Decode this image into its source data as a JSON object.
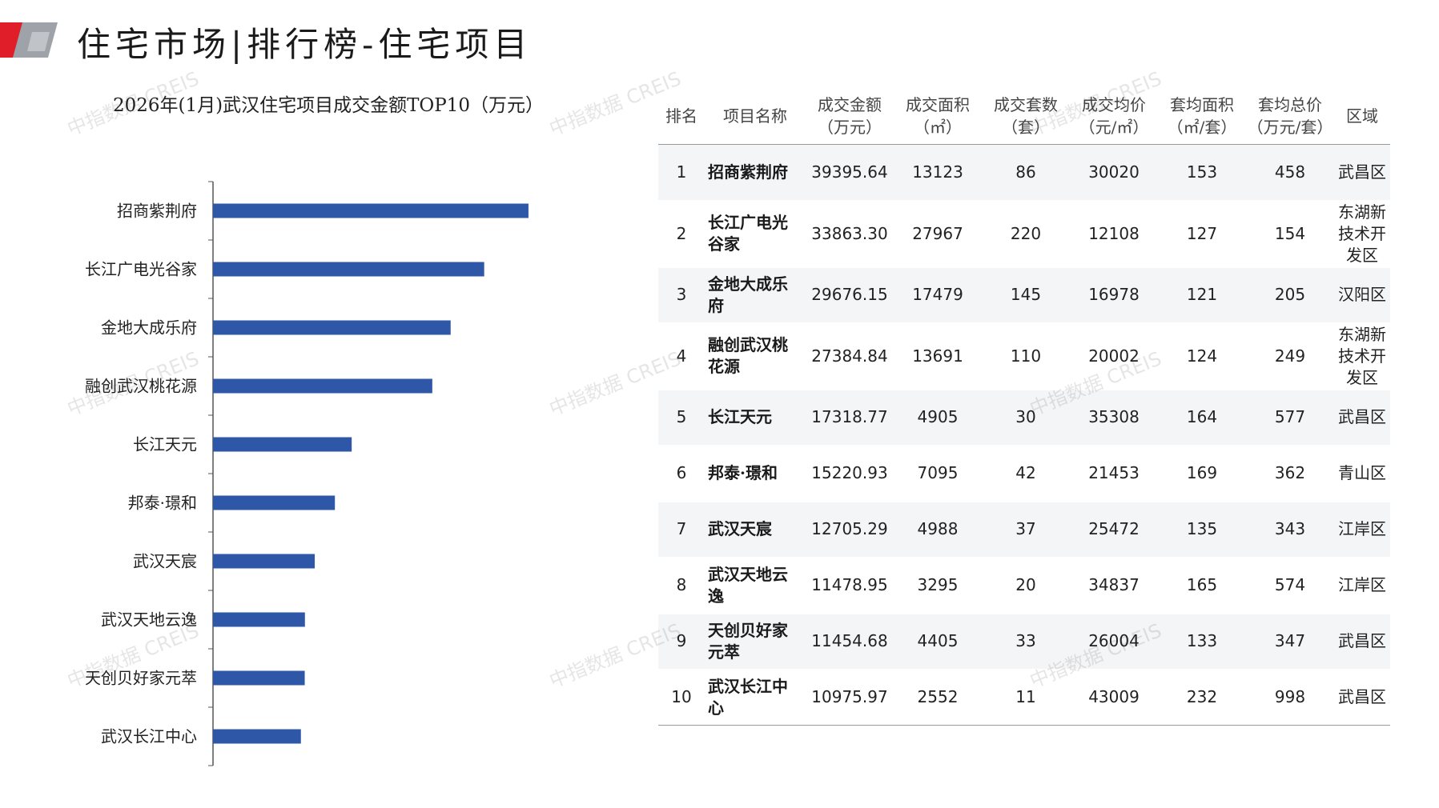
{
  "page": {
    "title": "住宅市场|排行榜-住宅项目",
    "watermark": "中指数据 CREIS"
  },
  "colors": {
    "bar": "#2f57a8",
    "accent_red": "#e01e2a",
    "accent_gray": "#9ea3a9"
  },
  "table": {
    "headers": [
      [
        "排名",
        ""
      ],
      [
        "项目名称",
        ""
      ],
      [
        "成交金额",
        "（万元）"
      ],
      [
        "成交面积",
        "（㎡）"
      ],
      [
        "成交套数",
        "（套）"
      ],
      [
        "成交均价",
        "（元/㎡）"
      ],
      [
        "套均面积",
        "（㎡/套）"
      ],
      [
        "套均总价",
        "（万元/套）"
      ],
      [
        "区域",
        ""
      ]
    ],
    "rows": [
      {
        "rank": "1",
        "name": "招商紫荆府",
        "amount": "39395.64",
        "area": "13123",
        "units": "86",
        "price": "30020",
        "avg_area": "153",
        "avg_total": "458",
        "district": "武昌区"
      },
      {
        "rank": "2",
        "name": "长江广电光谷家",
        "amount": "33863.30",
        "area": "27967",
        "units": "220",
        "price": "12108",
        "avg_area": "127",
        "avg_total": "154",
        "district": "东湖新技术开发区"
      },
      {
        "rank": "3",
        "name": "金地大成乐府",
        "amount": "29676.15",
        "area": "17479",
        "units": "145",
        "price": "16978",
        "avg_area": "121",
        "avg_total": "205",
        "district": "汉阳区"
      },
      {
        "rank": "4",
        "name": "融创武汉桃花源",
        "amount": "27384.84",
        "area": "13691",
        "units": "110",
        "price": "20002",
        "avg_area": "124",
        "avg_total": "249",
        "district": "东湖新技术开发区"
      },
      {
        "rank": "5",
        "name": "长江天元",
        "amount": "17318.77",
        "area": "4905",
        "units": "30",
        "price": "35308",
        "avg_area": "164",
        "avg_total": "577",
        "district": "武昌区"
      },
      {
        "rank": "6",
        "name": "邦泰·璟和",
        "amount": "15220.93",
        "area": "7095",
        "units": "42",
        "price": "21453",
        "avg_area": "169",
        "avg_total": "362",
        "district": "青山区"
      },
      {
        "rank": "7",
        "name": "武汉天宸",
        "amount": "12705.29",
        "area": "4988",
        "units": "37",
        "price": "25472",
        "avg_area": "135",
        "avg_total": "343",
        "district": "江岸区"
      },
      {
        "rank": "8",
        "name": "武汉天地云逸",
        "amount": "11478.95",
        "area": "3295",
        "units": "20",
        "price": "34837",
        "avg_area": "165",
        "avg_total": "574",
        "district": "江岸区"
      },
      {
        "rank": "9",
        "name": "天创贝好家元萃",
        "amount": "11454.68",
        "area": "4405",
        "units": "33",
        "price": "26004",
        "avg_area": "133",
        "avg_total": "347",
        "district": "武昌区"
      },
      {
        "rank": "10",
        "name": "武汉长江中心",
        "amount": "10975.97",
        "area": "2552",
        "units": "11",
        "price": "43009",
        "avg_area": "232",
        "avg_total": "998",
        "district": "武昌区"
      }
    ]
  },
  "chart_data": {
    "type": "bar",
    "orientation": "horizontal",
    "title": "2026年(1月)武汉住宅项目成交金额TOP10（万元）",
    "categories": [
      "招商紫荆府",
      "长江广电光谷家",
      "金地大成乐府",
      "融创武汉桃花源",
      "长江天元",
      "邦泰·璟和",
      "武汉天宸",
      "武汉天地云逸",
      "天创贝好家元萃",
      "武汉长江中心"
    ],
    "values": [
      39395.64,
      33863.3,
      29676.15,
      27384.84,
      17318.77,
      15220.93,
      12705.29,
      11478.95,
      11454.68,
      10975.97
    ],
    "xlim": [
      0,
      45000
    ],
    "xlabel": "",
    "ylabel": "",
    "grid": false,
    "legend": "none"
  }
}
